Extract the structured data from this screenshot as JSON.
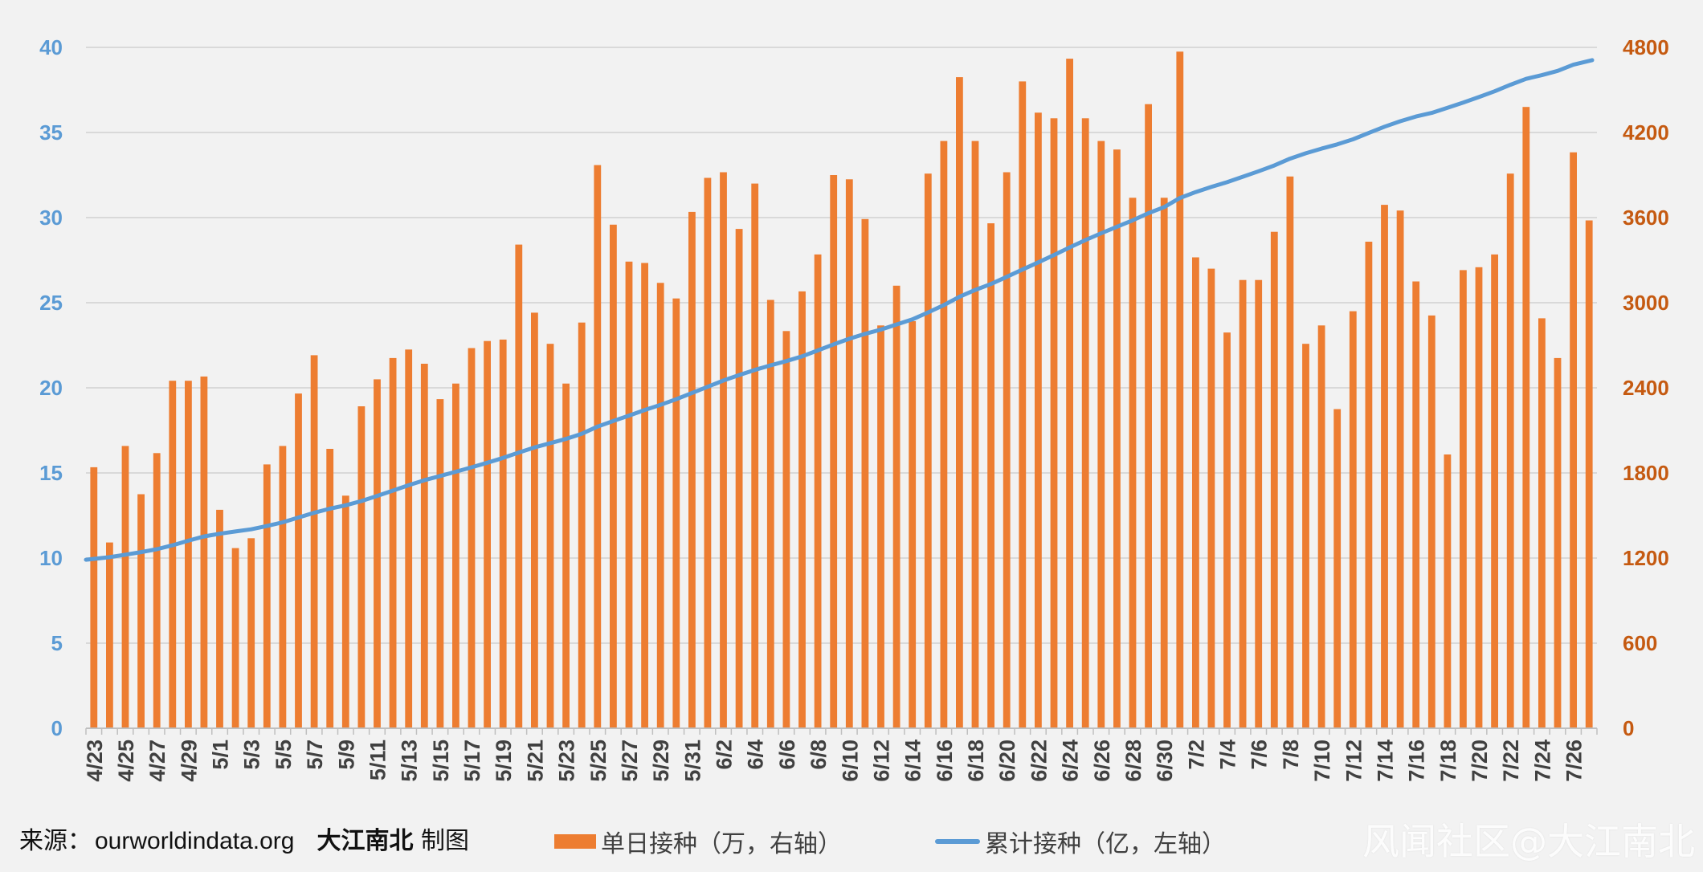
{
  "chart_data": {
    "type": "bar+line",
    "categories": [
      "4/23",
      "4/24",
      "4/25",
      "4/26",
      "4/27",
      "4/28",
      "4/29",
      "4/30",
      "5/1",
      "5/2",
      "5/3",
      "5/4",
      "5/5",
      "5/6",
      "5/7",
      "5/8",
      "5/9",
      "5/10",
      "5/11",
      "5/12",
      "5/13",
      "5/14",
      "5/15",
      "5/16",
      "5/17",
      "5/18",
      "5/19",
      "5/20",
      "5/21",
      "5/22",
      "5/23",
      "5/24",
      "5/25",
      "5/26",
      "5/27",
      "5/28",
      "5/29",
      "5/30",
      "5/31",
      "6/1",
      "6/2",
      "6/3",
      "6/4",
      "6/5",
      "6/6",
      "6/7",
      "6/8",
      "6/9",
      "6/10",
      "6/11",
      "6/12",
      "6/13",
      "6/14",
      "6/15",
      "6/16",
      "6/17",
      "6/18",
      "6/19",
      "6/20",
      "6/21",
      "6/22",
      "6/23",
      "6/24",
      "6/25",
      "6/26",
      "6/27",
      "6/28",
      "6/29",
      "6/30",
      "7/1",
      "7/2",
      "7/3",
      "7/4",
      "7/5",
      "7/6",
      "7/7",
      "7/8",
      "7/9",
      "7/10",
      "7/11",
      "7/12",
      "7/13",
      "7/14",
      "7/15",
      "7/16",
      "7/17",
      "7/18",
      "7/19",
      "7/20",
      "7/21",
      "7/22",
      "7/23",
      "7/24",
      "7/25",
      "7/26",
      "7/27"
    ],
    "tick_labels": [
      "4/23",
      "4/25",
      "4/27",
      "4/29",
      "5/1",
      "5/3",
      "5/5",
      "5/7",
      "5/9",
      "5/11",
      "5/13",
      "5/15",
      "5/17",
      "5/19",
      "5/21",
      "5/23",
      "5/25",
      "5/27",
      "5/29",
      "5/31",
      "6/2",
      "6/4",
      "6/6",
      "6/8",
      "6/10",
      "6/12",
      "6/14",
      "6/16",
      "6/18",
      "6/20",
      "6/22",
      "6/24",
      "6/26",
      "6/28",
      "6/30",
      "7/2",
      "7/4",
      "7/6",
      "7/8",
      "7/10",
      "7/12",
      "7/14",
      "7/16",
      "7/18",
      "7/20",
      "7/22",
      "7/24",
      "7/26"
    ],
    "series": [
      {
        "name": "单日接种（万，右轴）",
        "type": "bar",
        "axis": "right",
        "color": "#ed7d31",
        "values": [
          1840,
          1310,
          1990,
          1650,
          1940,
          2450,
          2450,
          2480,
          1540,
          1270,
          1340,
          1860,
          1990,
          2360,
          2630,
          1970,
          1640,
          2270,
          2460,
          2610,
          2670,
          2570,
          2320,
          2430,
          2680,
          2730,
          2740,
          3410,
          2930,
          2710,
          2430,
          2860,
          3970,
          3550,
          3290,
          3280,
          3140,
          3030,
          3640,
          3880,
          3920,
          3520,
          3840,
          3020,
          2800,
          3080,
          3340,
          3900,
          3870,
          3590,
          2840,
          3120,
          2870,
          3910,
          4140,
          4590,
          4140,
          3560,
          3920,
          4560,
          4340,
          4300,
          4720,
          4300,
          4140,
          4080,
          3740,
          4400,
          3740,
          4770,
          3320,
          3240,
          2790,
          3160,
          3160,
          3500,
          3890,
          2710,
          2840,
          2250,
          2940,
          3430,
          3690,
          3650,
          3150,
          2910,
          1930,
          3230,
          3250,
          3340,
          3910,
          4380,
          2890,
          2610,
          4060,
          3580
        ]
      },
      {
        "name": "累计接种（亿，左轴）",
        "type": "line",
        "axis": "left",
        "color": "#5b9bd5",
        "values": [
          9.9,
          10.05,
          10.2,
          10.35,
          10.52,
          10.75,
          11.02,
          11.27,
          11.43,
          11.56,
          11.69,
          11.88,
          12.1,
          12.38,
          12.66,
          12.9,
          13.1,
          13.35,
          13.65,
          13.96,
          14.28,
          14.57,
          14.82,
          15.07,
          15.33,
          15.6,
          15.88,
          16.2,
          16.5,
          16.75,
          17.0,
          17.3,
          17.72,
          18.05,
          18.37,
          18.7,
          19.0,
          19.33,
          19.7,
          20.06,
          20.43,
          20.75,
          21.05,
          21.32,
          21.57,
          21.85,
          22.2,
          22.55,
          22.88,
          23.17,
          23.42,
          23.72,
          24.02,
          24.43,
          24.86,
          25.35,
          25.75,
          26.1,
          26.52,
          26.95,
          27.37,
          27.8,
          28.25,
          28.68,
          29.08,
          29.46,
          29.84,
          30.26,
          30.62,
          31.15,
          31.5,
          31.8,
          32.08,
          32.4,
          32.72,
          33.06,
          33.46,
          33.78,
          34.05,
          34.3,
          34.6,
          34.97,
          35.34,
          35.66,
          35.94,
          36.15,
          36.45,
          36.76,
          37.08,
          37.42,
          37.8,
          38.15,
          38.37,
          38.62,
          38.98,
          39.25
        ]
      }
    ],
    "y_left": {
      "ticks": [
        "0",
        "5",
        "10",
        "15",
        "20",
        "25",
        "30",
        "35",
        "40"
      ],
      "lim": [
        0,
        40
      ],
      "color": "#5b9bd5"
    },
    "y_right": {
      "ticks": [
        "0",
        "600",
        "1200",
        "1800",
        "2400",
        "3000",
        "3600",
        "4200",
        "4800"
      ],
      "lim": [
        0,
        4800
      ],
      "color": "#c55a11"
    },
    "grid": true,
    "legend_position": "bottom"
  },
  "footer": {
    "source_label": "来源：",
    "source_url": "ourworldindata.org",
    "author": "大江南北",
    "author_suffix": "制图"
  },
  "legend": {
    "bar_label": "单日接种（万，右轴）",
    "line_label": "累计接种（亿，左轴）"
  },
  "watermark": "风闻社区@大江南北"
}
